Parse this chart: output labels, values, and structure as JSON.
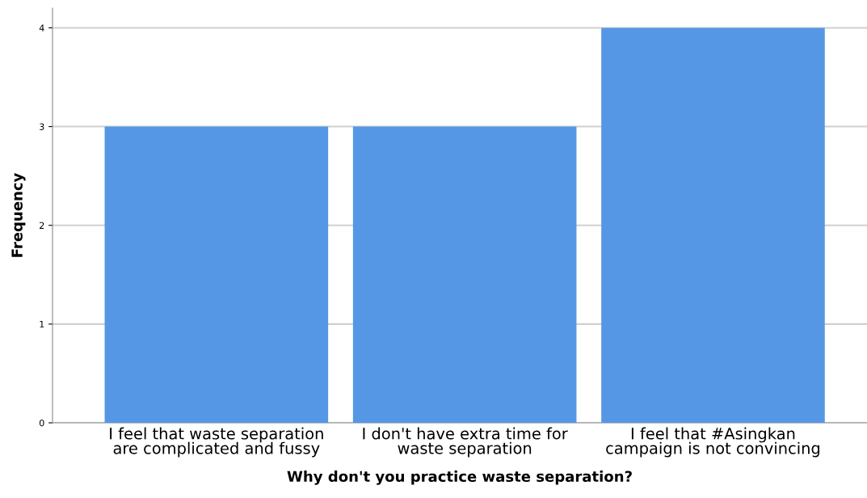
{
  "chart_data": {
    "type": "bar",
    "categories": [
      "I feel that waste separation\nare complicated and fussy",
      "I don't have extra time for\nwaste separation",
      "I feel that #Asingkan\ncampaign is not convincing"
    ],
    "values": [
      3,
      3,
      4
    ],
    "color": "#5597e4",
    "xlabel": "Why don't you practice waste separation?",
    "ylabel": "Frequency",
    "ylim": [
      0,
      4.2
    ],
    "yticks": [
      0,
      1,
      2,
      3,
      4
    ],
    "grid": "y"
  }
}
